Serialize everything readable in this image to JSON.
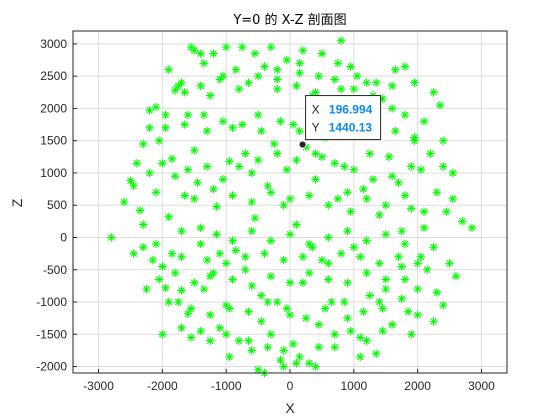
{
  "chart_data": {
    "type": "scatter",
    "title": "Y=0 的 X-Z 剖面图",
    "xlabel": "X",
    "ylabel": "Z",
    "xlim": [
      -3400,
      3400
    ],
    "ylim": [
      -2100,
      3200
    ],
    "xticks": [
      -3000,
      -2000,
      -1000,
      0,
      1000,
      2000,
      3000
    ],
    "yticks": [
      -2000,
      -1500,
      -1000,
      -500,
      0,
      500,
      1000,
      1500,
      2000,
      2500,
      3000
    ],
    "grid": true,
    "marker": "asterisk",
    "marker_color": "#00ff00",
    "series": [
      {
        "points": [
          [
            -2800,
            0
          ],
          [
            -2600,
            550
          ],
          [
            -2500,
            880
          ],
          [
            -2450,
            800
          ],
          [
            -2350,
            420
          ],
          [
            -2300,
            -150
          ],
          [
            -2200,
            1000
          ],
          [
            -2150,
            -350
          ],
          [
            -2300,
            1450
          ],
          [
            -2200,
            1970
          ],
          [
            -2100,
            2020
          ],
          [
            -2050,
            1500
          ],
          [
            -2000,
            -450
          ],
          [
            -1950,
            -780
          ],
          [
            -1900,
            320
          ],
          [
            -1850,
            1220
          ],
          [
            -1800,
            2280
          ],
          [
            -1750,
            2350
          ],
          [
            -1750,
            -1000
          ],
          [
            -1700,
            -820
          ],
          [
            -1650,
            650
          ],
          [
            -1600,
            1900
          ],
          [
            -1600,
            -1180
          ],
          [
            -1550,
            2950
          ],
          [
            -1500,
            2900
          ],
          [
            -1450,
            850
          ],
          [
            -1400,
            -1450
          ],
          [
            -1400,
            150
          ],
          [
            -1350,
            2700
          ],
          [
            -1300,
            1650
          ],
          [
            -1250,
            -600
          ],
          [
            -1200,
            2850
          ],
          [
            -1150,
            480
          ],
          [
            -1100,
            -1400
          ],
          [
            -1050,
            2500
          ],
          [
            -1000,
            -1050
          ],
          [
            -950,
            1180
          ],
          [
            -900,
            1700
          ],
          [
            -850,
            -200
          ],
          [
            -800,
            -1600
          ],
          [
            -750,
            2950
          ],
          [
            -700,
            1300
          ],
          [
            -650,
            2400
          ],
          [
            -600,
            -1750
          ],
          [
            -550,
            300
          ],
          [
            -500,
            1900
          ],
          [
            -450,
            -900
          ],
          [
            -400,
            2650
          ],
          [
            -350,
            800
          ],
          [
            -300,
            -1500
          ],
          [
            -250,
            1450
          ],
          [
            -200,
            2300
          ],
          [
            -150,
            -1900
          ],
          [
            -100,
            500
          ],
          [
            -50,
            2750
          ],
          [
            0,
            -1200
          ],
          [
            50,
            1750
          ],
          [
            100,
            200
          ],
          [
            150,
            2550
          ],
          [
            200,
            -700
          ],
          [
            250,
            1400
          ],
          [
            300,
            -1950
          ],
          [
            350,
            2200
          ],
          [
            400,
            900
          ],
          [
            450,
            -1350
          ],
          [
            500,
            2850
          ],
          [
            550,
            1550
          ],
          [
            600,
            -400
          ],
          [
            650,
            2050
          ],
          [
            700,
            -1700
          ],
          [
            750,
            600
          ],
          [
            800,
            3050
          ],
          [
            850,
            1100
          ],
          [
            900,
            -1250
          ],
          [
            950,
            2650
          ],
          [
            1000,
            -150
          ],
          [
            1050,
            1850
          ],
          [
            1100,
            -1550
          ],
          [
            1150,
            750
          ],
          [
            1200,
            2400
          ],
          [
            1250,
            -900
          ],
          [
            1300,
            1600
          ],
          [
            1350,
            -1800
          ],
          [
            1400,
            350
          ],
          [
            1450,
            2150
          ],
          [
            1500,
            -650
          ],
          [
            1550,
            1250
          ],
          [
            1600,
            -1350
          ],
          [
            1650,
            2600
          ],
          [
            1700,
            850
          ],
          [
            1750,
            -450
          ],
          [
            1800,
            1900
          ],
          [
            1850,
            -1150
          ],
          [
            1900,
            450
          ],
          [
            1950,
            1550
          ],
          [
            2000,
            -800
          ],
          [
            2050,
            1050
          ],
          [
            2100,
            150
          ],
          [
            2150,
            -500
          ],
          [
            2200,
            1300
          ],
          [
            2250,
            -150
          ],
          [
            2300,
            700
          ],
          [
            2350,
            2050
          ],
          [
            2400,
            -1050
          ],
          [
            2450,
            400
          ],
          [
            2550,
            1000
          ],
          [
            2600,
            -600
          ],
          [
            2700,
            250
          ],
          [
            2850,
            150
          ],
          [
            -2300,
            200
          ],
          [
            -2100,
            700
          ],
          [
            -1950,
            1700
          ],
          [
            -1850,
            -250
          ],
          [
            -1700,
            -1400
          ],
          [
            -1500,
            1350
          ],
          [
            -1350,
            -800
          ],
          [
            -1250,
            2200
          ],
          [
            -1100,
            -250
          ],
          [
            -950,
            -1850
          ],
          [
            -850,
            2600
          ],
          [
            -700,
            -500
          ],
          [
            -600,
            1000
          ],
          [
            -450,
            -1300
          ],
          [
            -300,
            2950
          ],
          [
            -200,
            -1000
          ],
          [
            -50,
            1050
          ],
          [
            50,
            -1650
          ],
          [
            200,
            2900
          ],
          [
            350,
            -150
          ],
          [
            500,
            1250
          ],
          [
            650,
            -1000
          ],
          [
            800,
            2300
          ],
          [
            950,
            400
          ],
          [
            1100,
            -1850
          ],
          [
            1250,
            1300
          ],
          [
            1400,
            -1000
          ],
          [
            1600,
            2000
          ],
          [
            1750,
            100
          ],
          [
            1900,
            -1500
          ],
          [
            2100,
            1800
          ],
          [
            2250,
            -1300
          ],
          [
            2400,
            1100
          ],
          [
            -1550,
            -1550
          ],
          [
            -1250,
            -1600
          ],
          [
            -1000,
            -1500
          ],
          [
            -650,
            -1600
          ],
          [
            -350,
            -1700
          ],
          [
            -100,
            -1750
          ],
          [
            150,
            -1850
          ],
          [
            450,
            -1700
          ],
          [
            700,
            -1500
          ],
          [
            950,
            -1450
          ],
          [
            1200,
            -1600
          ],
          [
            1450,
            -1450
          ],
          [
            -1400,
            2850
          ],
          [
            -1000,
            2950
          ],
          [
            -550,
            2850
          ],
          [
            -200,
            2600
          ],
          [
            150,
            2700
          ],
          [
            450,
            2500
          ],
          [
            750,
            2700
          ],
          [
            1050,
            2500
          ],
          [
            1350,
            2400
          ],
          [
            -2000,
            1150
          ],
          [
            -1800,
            950
          ],
          [
            -1600,
            1050
          ],
          [
            -1300,
            1100
          ],
          [
            -1050,
            900
          ],
          [
            -800,
            1100
          ],
          [
            -500,
            1200
          ],
          [
            -200,
            1300
          ],
          [
            100,
            1200
          ],
          [
            400,
            1300
          ],
          [
            700,
            1150
          ],
          [
            1000,
            1050
          ],
          [
            1300,
            900
          ],
          [
            1600,
            950
          ],
          [
            1900,
            1100
          ],
          [
            -2100,
            -100
          ],
          [
            -1700,
            100
          ],
          [
            -1400,
            -100
          ],
          [
            -1150,
            50
          ],
          [
            -900,
            -50
          ],
          [
            -600,
            100
          ],
          [
            -300,
            -50
          ],
          [
            0,
            50
          ],
          [
            300,
            -100
          ],
          [
            600,
            0
          ],
          [
            900,
            100
          ],
          [
            1200,
            -50
          ],
          [
            1500,
            50
          ],
          [
            1800,
            -100
          ],
          [
            2050,
            -300
          ],
          [
            -2050,
            -650
          ],
          [
            -1800,
            -550
          ],
          [
            -1500,
            -700
          ],
          [
            -1200,
            -550
          ],
          [
            -900,
            -650
          ],
          [
            -600,
            -750
          ],
          [
            -300,
            -600
          ],
          [
            0,
            -700
          ],
          [
            300,
            -550
          ],
          [
            600,
            -650
          ],
          [
            900,
            -700
          ],
          [
            1200,
            -550
          ],
          [
            1500,
            -800
          ],
          [
            1800,
            -650
          ],
          [
            -1900,
            -1000
          ],
          [
            -1550,
            -1100
          ],
          [
            -1250,
            -1200
          ],
          [
            -950,
            -1100
          ],
          [
            -650,
            -1150
          ],
          [
            -350,
            -1000
          ],
          [
            -50,
            -1100
          ],
          [
            250,
            -1250
          ],
          [
            550,
            -1100
          ],
          [
            850,
            -1000
          ],
          [
            1150,
            -1150
          ],
          [
            1450,
            -1100
          ],
          [
            1750,
            -950
          ],
          [
            2000,
            -1200
          ],
          [
            -1950,
            1900
          ],
          [
            -1650,
            1750
          ],
          [
            -1350,
            1900
          ],
          [
            -1050,
            1800
          ],
          [
            -750,
            1750
          ],
          [
            -450,
            1650
          ],
          [
            -150,
            1800
          ],
          [
            150,
            1650
          ],
          [
            450,
            1800
          ],
          [
            750,
            1700
          ],
          [
            1050,
            1600
          ],
          [
            1350,
            1750
          ],
          [
            1650,
            1650
          ],
          [
            1950,
            1500
          ],
          [
            -1700,
            2400
          ],
          [
            -1400,
            2350
          ],
          [
            -1100,
            2450
          ],
          [
            -800,
            2300
          ],
          [
            -500,
            2500
          ],
          [
            -200,
            2450
          ],
          [
            100,
            2350
          ],
          [
            400,
            2250
          ],
          [
            700,
            2450
          ],
          [
            1000,
            2300
          ],
          [
            1300,
            2200
          ],
          [
            1600,
            2350
          ],
          [
            1800,
            2650
          ],
          [
            -500,
            -2050
          ],
          [
            -400,
            -2100
          ],
          [
            -100,
            -2000
          ],
          [
            100,
            -1950
          ],
          [
            400,
            -2000
          ],
          [
            -1500,
            600
          ],
          [
            -1200,
            750
          ],
          [
            -900,
            650
          ],
          [
            -600,
            550
          ],
          [
            -300,
            700
          ],
          [
            0,
            600
          ],
          [
            300,
            650
          ],
          [
            600,
            500
          ],
          [
            900,
            700
          ],
          [
            1200,
            600
          ],
          [
            1500,
            500
          ],
          [
            1800,
            650
          ],
          [
            2100,
            400
          ],
          [
            -1700,
            -300
          ],
          [
            -1300,
            -350
          ],
          [
            -1000,
            -400
          ],
          [
            -700,
            -300
          ],
          [
            -400,
            -250
          ],
          [
            -100,
            -350
          ],
          [
            200,
            -300
          ],
          [
            500,
            -350
          ],
          [
            800,
            -250
          ],
          [
            1100,
            -300
          ],
          [
            1400,
            -400
          ],
          [
            1700,
            -300
          ],
          [
            2000,
            -400
          ],
          [
            -2200,
            1700
          ],
          [
            -2400,
            1150
          ],
          [
            -2450,
            -250
          ],
          [
            -2250,
            -800
          ],
          [
            -2000,
            -1500
          ],
          [
            2300,
            -850
          ],
          [
            2500,
            -400
          ],
          [
            2550,
            600
          ],
          [
            2400,
            1500
          ],
          [
            2250,
            2250
          ],
          [
            1950,
            2400
          ],
          [
            -1900,
            2600
          ],
          [
            -1650,
            2250
          ]
        ]
      }
    ]
  },
  "datatip": {
    "x_key": "X",
    "x_value": "196.994",
    "y_key": "Y",
    "y_value": "1440.13",
    "x": 196.994,
    "y": 1440.13
  }
}
